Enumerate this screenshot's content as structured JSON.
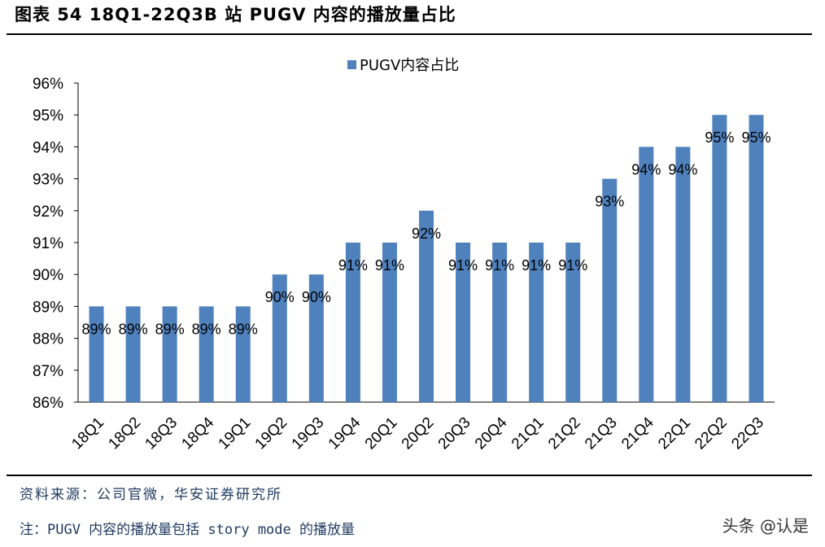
{
  "header": {
    "title": "图表 54 18Q1-22Q3B 站 PUGV 内容的播放量占比"
  },
  "chart_data": {
    "type": "bar",
    "title": "",
    "categories": [
      "18Q1",
      "18Q2",
      "18Q3",
      "18Q4",
      "19Q1",
      "19Q2",
      "19Q3",
      "19Q4",
      "20Q1",
      "20Q2",
      "20Q3",
      "20Q4",
      "21Q1",
      "21Q2",
      "21Q3",
      "21Q4",
      "22Q1",
      "22Q2",
      "22Q3"
    ],
    "series": [
      {
        "name": "PUGV内容占比",
        "values": [
          89,
          89,
          89,
          89,
          89,
          90,
          90,
          91,
          91,
          92,
          91,
          91,
          91,
          91,
          93,
          94,
          94,
          95,
          95
        ],
        "labels": [
          "89%",
          "89%",
          "89%",
          "89%",
          "89%",
          "90%",
          "90%",
          "91%",
          "91%",
          "92%",
          "91%",
          "91%",
          "91%",
          "91%",
          "93%",
          "94%",
          "94%",
          "95%",
          "95%"
        ]
      }
    ],
    "ylim": [
      86,
      96
    ],
    "yticks": [
      "86%",
      "87%",
      "88%",
      "89%",
      "90%",
      "91%",
      "92%",
      "93%",
      "94%",
      "95%",
      "96%"
    ],
    "xlabel": "",
    "ylabel": "",
    "legend": "top-center",
    "bar_color": "#4f81bd"
  },
  "footer": {
    "source": "资料来源：公司官微，华安证券研究所",
    "note": "注：PUGV 内容的播放量包括 story mode 的播放量",
    "watermark": "头条 @认是"
  }
}
